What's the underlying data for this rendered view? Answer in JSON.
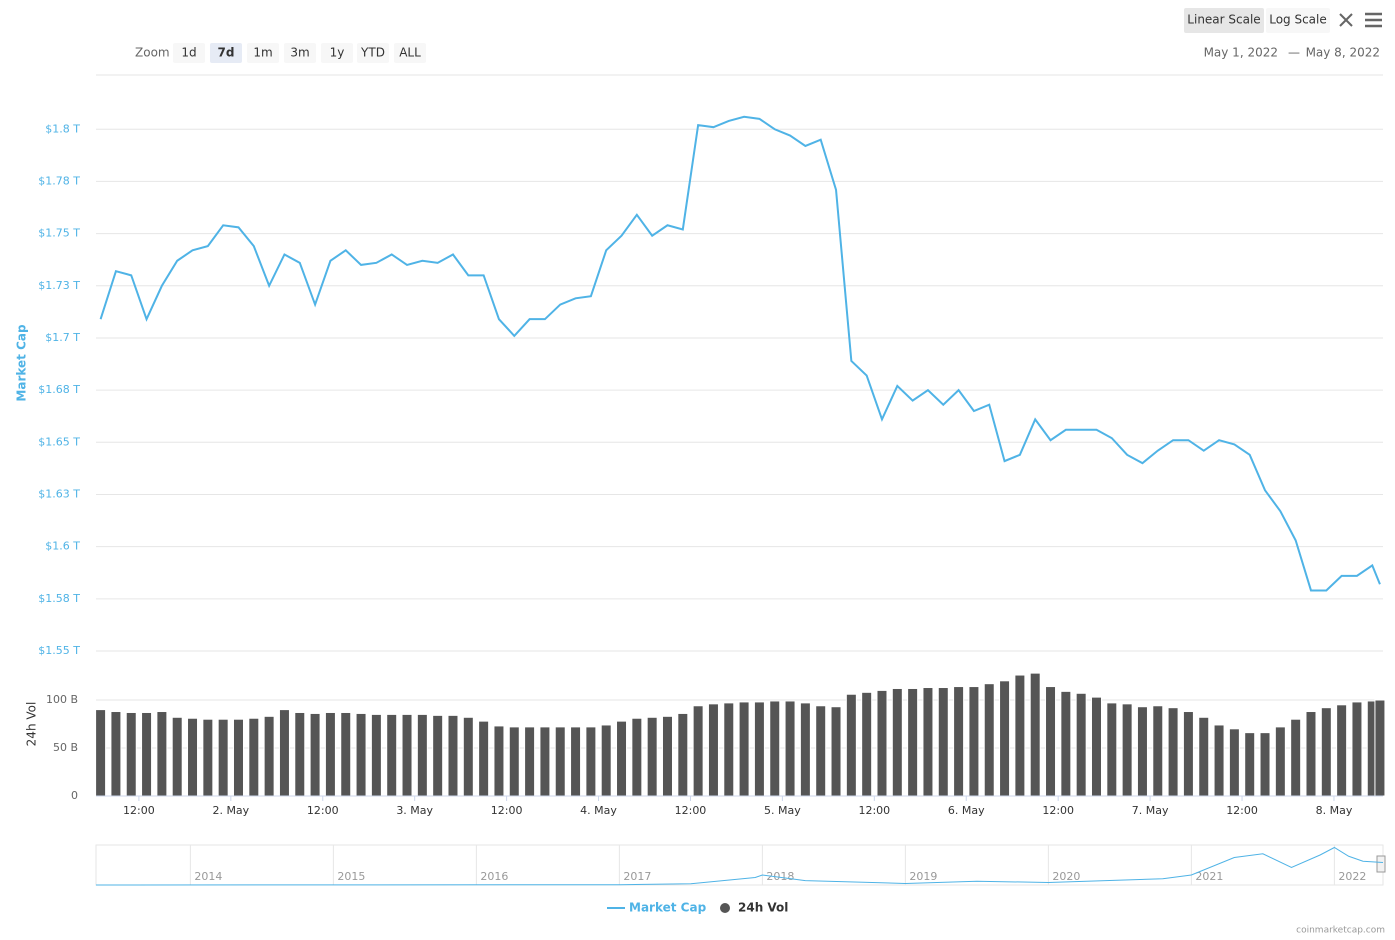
{
  "toolbar": {
    "zoom_label": "Zoom",
    "zoom_buttons": [
      "1d",
      "7d",
      "1m",
      "3m",
      "1y",
      "YTD",
      "ALL"
    ],
    "selected_zoom": 1,
    "scale_buttons": [
      "Linear Scale",
      "Log Scale"
    ],
    "selected_scale": 0,
    "range_from": "May 1, 2022",
    "range_separator": "—",
    "range_to": "May 8, 2022"
  },
  "chart_data": [
    {
      "type": "line",
      "ylabel": "Market Cap",
      "x": [
        7,
        9,
        11,
        13,
        15,
        17,
        19,
        21,
        23,
        25,
        27,
        29,
        31,
        33,
        35,
        37,
        39,
        41,
        43,
        45,
        47,
        49,
        51,
        53,
        55,
        57,
        59,
        61,
        63,
        65,
        67,
        69,
        71,
        73,
        75,
        77,
        79,
        81,
        83,
        85,
        87,
        89,
        91,
        93,
        95,
        97,
        99,
        101,
        103,
        105,
        107,
        109,
        111,
        113,
        115,
        117,
        119,
        121,
        123,
        125,
        127,
        129,
        131,
        133,
        135,
        137,
        139,
        141,
        143,
        145,
        147,
        149,
        151,
        153,
        155,
        157,
        159,
        161,
        163,
        165,
        167,
        169,
        171,
        173,
        174
      ],
      "xlim": [
        6.4,
        174.4
      ],
      "series": [
        {
          "name": "Market Cap",
          "color": "#4fb3e6",
          "values": [
            1.709,
            1.732,
            1.73,
            1.709,
            1.725,
            1.737,
            1.742,
            1.744,
            1.754,
            1.753,
            1.744,
            1.725,
            1.74,
            1.736,
            1.716,
            1.737,
            1.742,
            1.735,
            1.736,
            1.74,
            1.735,
            1.737,
            1.736,
            1.74,
            1.73,
            1.73,
            1.709,
            1.701,
            1.709,
            1.709,
            1.716,
            1.719,
            1.72,
            1.742,
            1.749,
            1.759,
            1.749,
            1.754,
            1.752,
            1.802,
            1.801,
            1.804,
            1.806,
            1.805,
            1.8,
            1.797,
            1.792,
            1.795,
            1.771,
            1.689,
            1.682,
            1.661,
            1.677,
            1.67,
            1.675,
            1.668,
            1.675,
            1.665,
            1.668,
            1.641,
            1.644,
            1.661,
            1.651,
            1.656,
            1.656,
            1.656,
            1.652,
            1.644,
            1.64,
            1.646,
            1.651,
            1.651,
            1.646,
            1.651,
            1.649,
            1.644,
            1.627,
            1.617,
            1.603,
            1.579,
            1.579,
            1.586,
            1.586,
            1.591,
            1.582
          ]
        }
      ],
      "ylim": [
        1.55,
        1.826
      ],
      "yticks": [
        {
          "value": 1.55,
          "label": "$1.55 T"
        },
        {
          "value": 1.575,
          "label": "$1.58 T"
        },
        {
          "value": 1.6,
          "label": "$1.6 T"
        },
        {
          "value": 1.625,
          "label": "$1.63 T"
        },
        {
          "value": 1.65,
          "label": "$1.65 T"
        },
        {
          "value": 1.675,
          "label": "$1.68 T"
        },
        {
          "value": 1.7,
          "label": "$1.7 T"
        },
        {
          "value": 1.725,
          "label": "$1.73 T"
        },
        {
          "value": 1.75,
          "label": "$1.75 T"
        },
        {
          "value": 1.775,
          "label": "$1.78 T"
        },
        {
          "value": 1.8,
          "label": "$1.8 T"
        }
      ],
      "grid": true
    },
    {
      "type": "bar",
      "ylabel": "24h Vol",
      "x": [
        7,
        9,
        11,
        13,
        15,
        17,
        19,
        21,
        23,
        25,
        27,
        29,
        31,
        33,
        35,
        37,
        39,
        41,
        43,
        45,
        47,
        49,
        51,
        53,
        55,
        57,
        59,
        61,
        63,
        65,
        67,
        69,
        71,
        73,
        75,
        77,
        79,
        81,
        83,
        85,
        87,
        89,
        91,
        93,
        95,
        97,
        99,
        101,
        103,
        105,
        107,
        109,
        111,
        113,
        115,
        117,
        119,
        121,
        123,
        125,
        127,
        129,
        131,
        133,
        135,
        137,
        139,
        141,
        143,
        145,
        147,
        149,
        151,
        153,
        155,
        157,
        159,
        161,
        163,
        165,
        167,
        169,
        171,
        173,
        174
      ],
      "xlim": [
        6.4,
        174.4
      ],
      "xticks": [
        {
          "value": 12,
          "label": "12:00"
        },
        {
          "value": 24,
          "label": "2. May"
        },
        {
          "value": 36,
          "label": "12:00"
        },
        {
          "value": 48,
          "label": "3. May"
        },
        {
          "value": 60,
          "label": "12:00"
        },
        {
          "value": 72,
          "label": "4. May"
        },
        {
          "value": 84,
          "label": "12:00"
        },
        {
          "value": 96,
          "label": "5. May"
        },
        {
          "value": 108,
          "label": "12:00"
        },
        {
          "value": 120,
          "label": "6. May"
        },
        {
          "value": 132,
          "label": "12:00"
        },
        {
          "value": 144,
          "label": "7. May"
        },
        {
          "value": 156,
          "label": "12:00"
        },
        {
          "value": 168,
          "label": "8. May"
        }
      ],
      "series": [
        {
          "name": "24h Vol",
          "color": "#555555",
          "values": [
            90,
            88,
            87,
            87,
            88,
            82,
            81,
            80,
            80,
            80,
            81,
            83,
            90,
            87,
            86,
            87,
            87,
            86,
            85,
            85,
            85,
            85,
            84,
            84,
            82,
            78,
            73,
            72,
            72,
            72,
            72,
            72,
            72,
            74,
            78,
            81,
            82,
            83,
            86,
            94,
            96,
            97,
            98,
            98,
            99,
            99,
            97,
            94,
            93,
            106,
            108,
            110,
            112,
            112,
            113,
            113,
            114,
            114,
            117,
            120,
            126,
            128,
            114,
            109,
            107,
            103,
            97,
            96,
            93,
            94,
            92,
            88,
            82,
            74,
            70,
            66,
            66,
            72,
            80,
            88,
            92,
            95,
            98,
            99,
            100
          ]
        }
      ],
      "ylim": [
        0,
        150
      ],
      "yticks": [
        0,
        {
          "value": 50,
          "label": "50 B"
        },
        {
          "value": 100,
          "label": "100 B"
        }
      ],
      "grid": true
    },
    {
      "type": "area",
      "x": [
        2013.34,
        2017.0,
        2017.5,
        2017.95,
        2018.0,
        2018.3,
        2019.0,
        2019.5,
        2020.0,
        2020.8,
        2021.0,
        2021.3,
        2021.5,
        2021.7,
        2021.9,
        2022.0,
        2022.1,
        2022.2,
        2022.34
      ],
      "values": [
        0.001,
        0.02,
        0.1,
        0.6,
        0.8,
        0.35,
        0.12,
        0.3,
        0.2,
        0.5,
        0.8,
        2.2,
        2.5,
        1.4,
        2.4,
        3.0,
        2.3,
        1.9,
        1.8
      ],
      "xlim": [
        2013.34,
        2022.34
      ],
      "xticks": [
        2014,
        2015,
        2016,
        2017,
        2018,
        2019,
        2020,
        2021,
        2022
      ],
      "ylim": [
        0,
        3.2
      ],
      "color": "#4fb3e6"
    }
  ],
  "credits": "coinmarketcap.com"
}
